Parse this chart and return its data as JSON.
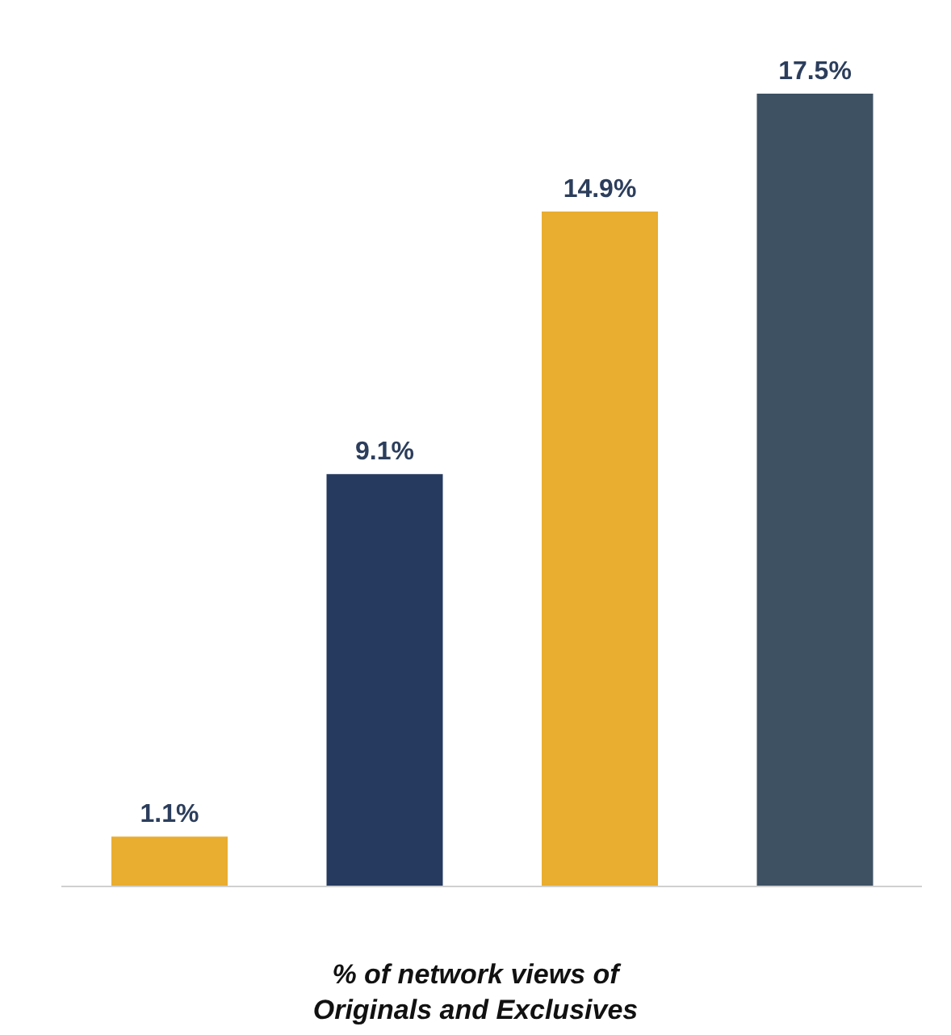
{
  "chart_data": {
    "type": "bar",
    "xlabel": "% of network views of Originals and Exclusives",
    "categories": [
      null,
      null,
      null,
      null
    ],
    "values": [
      1.1,
      9.1,
      14.9,
      17.5
    ],
    "colors": [
      "#e9ad2f",
      "#253a5e",
      "#e9ad2f",
      "#3e5163"
    ],
    "value_labels": [
      "1.1%",
      "9.1%",
      "14.9%",
      "17.5%"
    ]
  }
}
